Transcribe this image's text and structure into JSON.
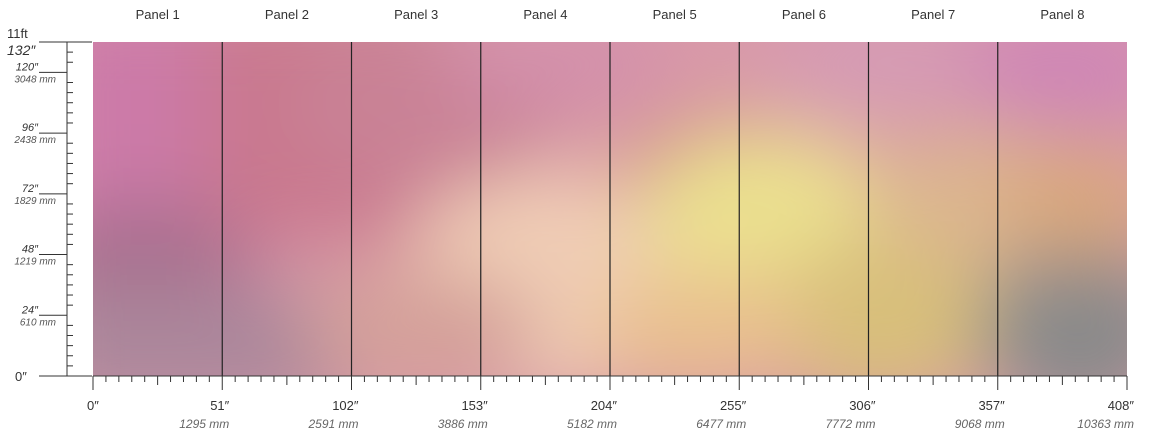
{
  "panels": [
    "Panel 1",
    "Panel 2",
    "Panel 3",
    "Panel 4",
    "Panel 5",
    "Panel 6",
    "Panel 7",
    "Panel 8"
  ],
  "height_scale": {
    "top_ft_label": "11ft",
    "top_in_label": "132″",
    "zero_label": "0″",
    "labeled_ticks": [
      {
        "inches": 120,
        "in_label": "120″",
        "mm_label": "3048 mm"
      },
      {
        "inches": 96,
        "in_label": "96″",
        "mm_label": "2438 mm"
      },
      {
        "inches": 72,
        "in_label": "72″",
        "mm_label": "1829 mm"
      },
      {
        "inches": 48,
        "in_label": "48″",
        "mm_label": "1219 mm"
      },
      {
        "inches": 24,
        "in_label": "24″",
        "mm_label": "610 mm"
      }
    ],
    "max_inches": 132
  },
  "width_scale": {
    "max_inches": 408,
    "labeled_ticks": [
      {
        "inches": 0,
        "in_label": "0″",
        "mm_label": ""
      },
      {
        "inches": 51,
        "in_label": "51″",
        "mm_label": "1295 mm"
      },
      {
        "inches": 102,
        "in_label": "102″",
        "mm_label": "2591 mm"
      },
      {
        "inches": 153,
        "in_label": "153″",
        "mm_label": "3886 mm"
      },
      {
        "inches": 204,
        "in_label": "204″",
        "mm_label": "5182 mm"
      },
      {
        "inches": 255,
        "in_label": "255″",
        "mm_label": "6477 mm"
      },
      {
        "inches": 306,
        "in_label": "306″",
        "mm_label": "7772 mm"
      },
      {
        "inches": 357,
        "in_label": "357″",
        "mm_label": "9068 mm"
      },
      {
        "inches": 408,
        "in_label": "408″",
        "mm_label": "10363 mm"
      }
    ]
  },
  "colors": {
    "pink": "#cc7aa8",
    "rose": "#c9788e",
    "mauve": "#a8708f",
    "peach": "#f0cdb5",
    "butter": "#ebe08f",
    "gold": "#d8bf7a",
    "gray": "#8a8a8a",
    "divider": "#222222"
  }
}
